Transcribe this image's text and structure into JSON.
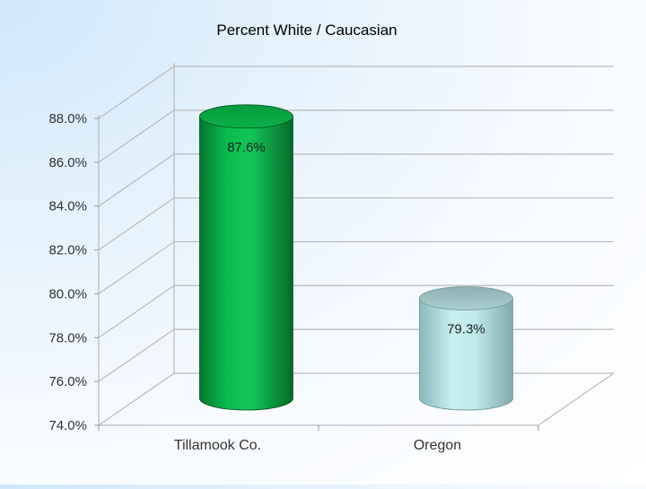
{
  "chart_data": {
    "type": "bar",
    "title": "Percent White / Caucasian",
    "categories": [
      "Tillamook Co.",
      "Oregon"
    ],
    "values": [
      87.6,
      79.3
    ],
    "data_labels": [
      "87.6%",
      "79.3%"
    ],
    "ylim": [
      74.0,
      88.0
    ],
    "yticks": [
      74.0,
      76.0,
      78.0,
      80.0,
      82.0,
      84.0,
      86.0,
      88.0
    ],
    "ytick_labels": [
      "74.0%",
      "76.0%",
      "78.0%",
      "80.0%",
      "82.0%",
      "84.0%",
      "86.0%",
      "88.0%"
    ],
    "xlabel": "",
    "ylabel": "",
    "grid": true,
    "bar_style": "3d-cylinder",
    "colors": [
      "#0aa845",
      "#a9dfe0"
    ]
  }
}
